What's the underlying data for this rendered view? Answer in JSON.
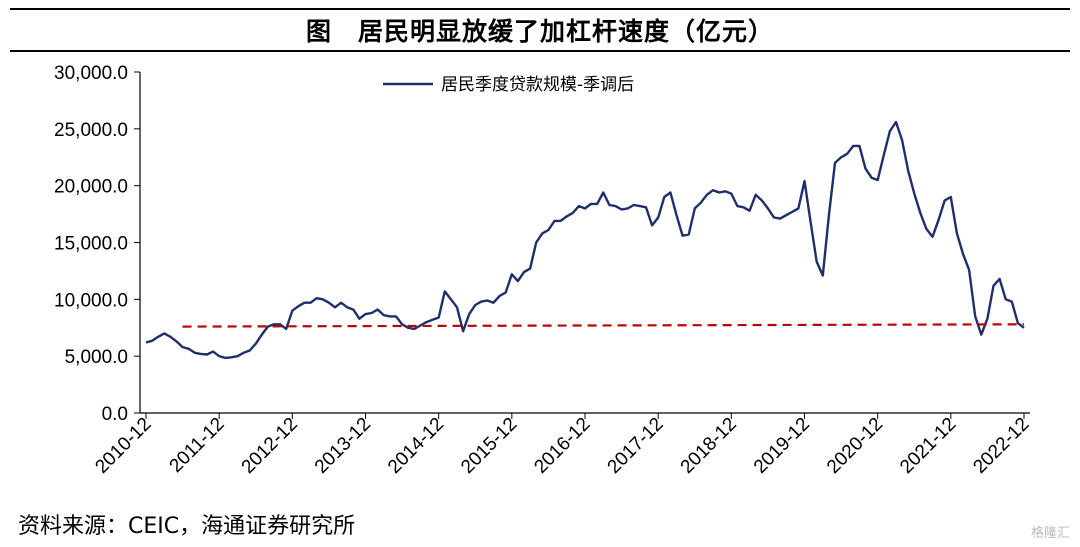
{
  "title": "图　居民明显放缓了加杠杆速度（亿元）",
  "source": "资料来源：CEIC，海通证券研究所",
  "watermark": "格隆汇",
  "colors": {
    "series": "#1f2f6b",
    "reference": "#c00000",
    "axis": "#000000"
  },
  "chart_data": {
    "type": "line",
    "title": "图　居民明显放缓了加杠杆速度（亿元）",
    "xlabel": "",
    "ylabel": "",
    "ylim": [
      0,
      30000
    ],
    "yticks": [
      "0.0",
      "5,000.0",
      "10,000.0",
      "15,000.0",
      "20,000.0",
      "25,000.0",
      "30,000.0"
    ],
    "xticks": [
      "2010-12",
      "2011-12",
      "2012-12",
      "2013-12",
      "2014-12",
      "2015-12",
      "2016-12",
      "2017-12",
      "2018-12",
      "2019-12",
      "2020-12",
      "2021-12",
      "2022-12"
    ],
    "x_start": "2010-12",
    "x_end": "2022-12",
    "grid": false,
    "legend_position": "top-center",
    "series": [
      {
        "name": "居民季度贷款规模-季调后",
        "style": "solid",
        "values": [
          6200,
          6350,
          6700,
          7000,
          6700,
          6300,
          5800,
          5650,
          5300,
          5200,
          5150,
          5400,
          5000,
          4850,
          4900,
          5000,
          5300,
          5500,
          6100,
          6900,
          7600,
          7800,
          7800,
          7400,
          9000,
          9400,
          9700,
          9700,
          10100,
          10000,
          9700,
          9300,
          9700,
          9300,
          9100,
          8300,
          8700,
          8800,
          9100,
          8600,
          8500,
          8500,
          7800,
          7500,
          7400,
          7700,
          8000,
          8200,
          8400,
          10700,
          10000,
          9300,
          7200,
          8700,
          9500,
          9800,
          9900,
          9700,
          10300,
          10600,
          12200,
          11600,
          12400,
          12700,
          15000,
          15800,
          16100,
          16900,
          16900,
          17300,
          17600,
          18200,
          18000,
          18400,
          18400,
          19400,
          18300,
          18200,
          17900,
          18000,
          18300,
          18200,
          18100,
          16500,
          17200,
          19000,
          19400,
          17400,
          15600,
          15700,
          18000,
          18500,
          19200,
          19600,
          19400,
          19500,
          19300,
          18200,
          18100,
          17800,
          19200,
          18700,
          18000,
          17200,
          17100,
          17400,
          17700,
          18000,
          20400,
          16800,
          13300,
          12100,
          17400,
          22000,
          22500,
          22800,
          23500,
          23500,
          21500,
          20700,
          20500,
          22700,
          24800,
          25600,
          24000,
          21300,
          19300,
          17600,
          16200,
          15500,
          17000,
          18700,
          19000,
          15800,
          14000,
          12600,
          8500,
          6900,
          8300,
          11200,
          11800,
          10000,
          9800,
          7900,
          7500
        ]
      },
      {
        "name": "",
        "style": "dashed",
        "x": [
          "2011-06",
          "2022-12"
        ],
        "values": [
          7600,
          7800
        ]
      }
    ]
  }
}
